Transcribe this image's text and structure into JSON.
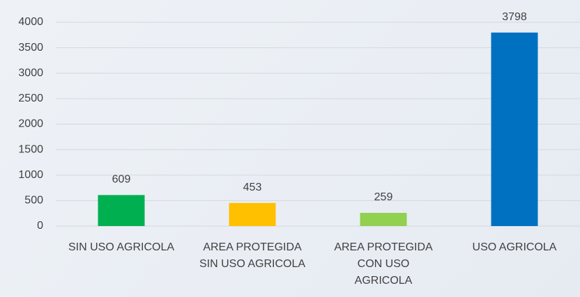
{
  "chart_data": {
    "type": "bar",
    "categories": [
      "SIN USO AGRICOLA",
      "AREA PROTEGIDA SIN USO AGRICOLA",
      "AREA PROTEGIDA CON USO AGRICOLA",
      "USO AGRICOLA"
    ],
    "values": [
      609,
      453,
      259,
      3798
    ],
    "colors": [
      "#00b050",
      "#ffc000",
      "#92d050",
      "#0070c0"
    ],
    "ylim": [
      0,
      4000
    ],
    "yticks": [
      0,
      500,
      1000,
      1500,
      2000,
      2500,
      3000,
      3500,
      4000
    ],
    "grid": true
  }
}
